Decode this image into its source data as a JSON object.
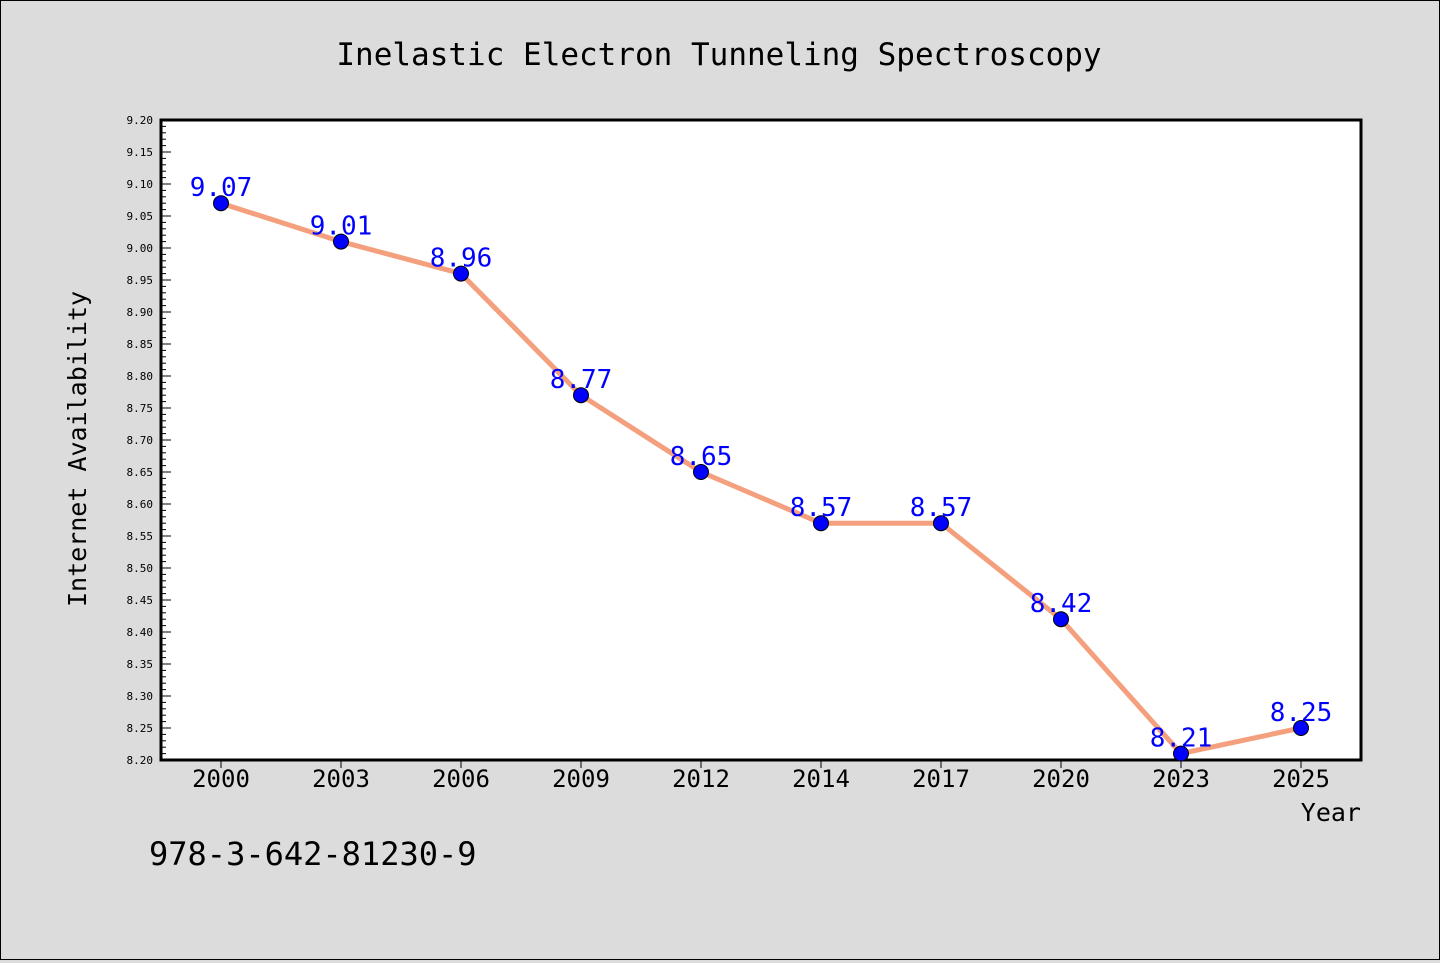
{
  "chart_data": {
    "type": "line",
    "title": "Inelastic Electron Tunneling Spectroscopy",
    "xlabel": "Year",
    "ylabel": "Internet Availability",
    "categories": [
      "2000",
      "2003",
      "2006",
      "2009",
      "2012",
      "2014",
      "2017",
      "2020",
      "2023",
      "2025"
    ],
    "values": [
      9.07,
      9.01,
      8.96,
      8.77,
      8.65,
      8.57,
      8.57,
      8.42,
      8.21,
      8.25
    ],
    "value_labels": [
      "9.07",
      "9.01",
      "8.96",
      "8.77",
      "8.65",
      "8.57",
      "8.57",
      "8.42",
      "8.21",
      "8.25"
    ],
    "ylim": [
      8.2,
      9.2
    ],
    "yticks": [
      "8.20",
      "8.25",
      "8.30",
      "8.35",
      "8.40",
      "8.45",
      "8.50",
      "8.55",
      "8.60",
      "8.65",
      "8.70",
      "8.75",
      "8.80",
      "8.85",
      "8.90",
      "8.95",
      "9.00",
      "9.05",
      "9.10",
      "9.15",
      "9.20"
    ],
    "grid": false,
    "colors": {
      "line": "#f4a07e",
      "marker": "#0000ff",
      "value_label": "#0000ff",
      "background": "#dcdcdc",
      "plot_background": "#ffffff"
    }
  },
  "footer": {
    "isbn": "978-3-642-81230-9"
  }
}
